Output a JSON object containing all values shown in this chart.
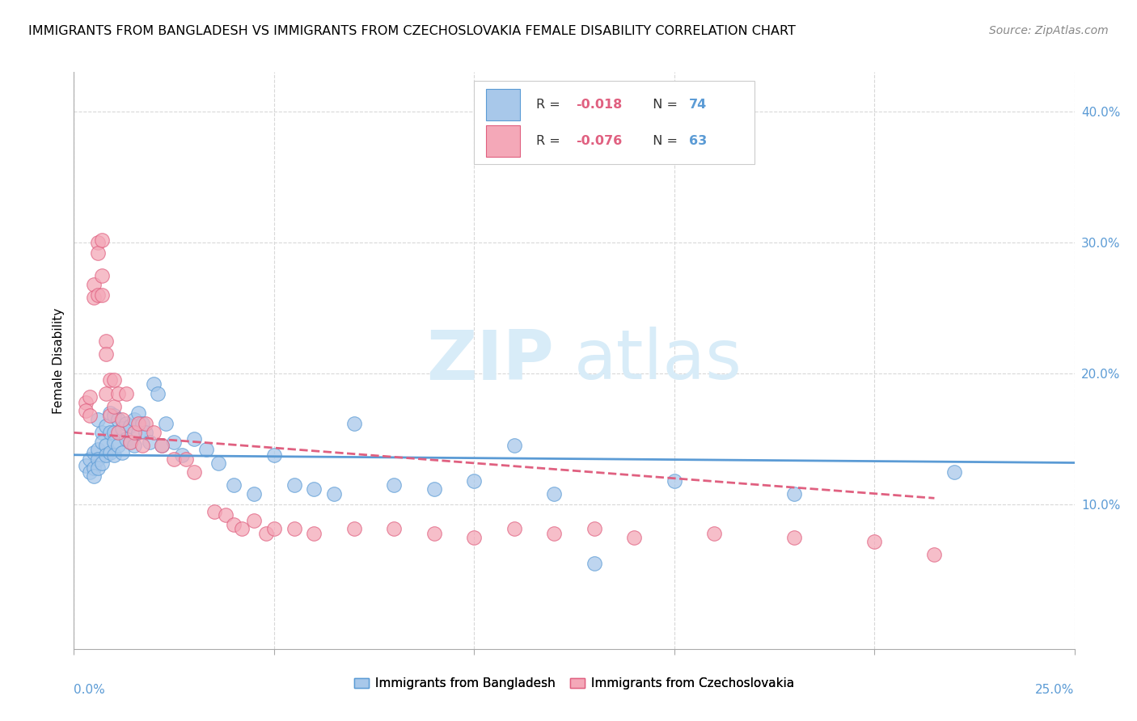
{
  "title": "IMMIGRANTS FROM BANGLADESH VS IMMIGRANTS FROM CZECHOSLOVAKIA FEMALE DISABILITY CORRELATION CHART",
  "source": "Source: ZipAtlas.com",
  "ylabel": "Female Disability",
  "ylabel_right_ticks": [
    "10.0%",
    "20.0%",
    "30.0%",
    "40.0%"
  ],
  "ylabel_right_vals": [
    0.1,
    0.2,
    0.3,
    0.4
  ],
  "xlim": [
    0.0,
    0.25
  ],
  "ylim": [
    -0.01,
    0.43
  ],
  "color_blue": "#a8c8ea",
  "color_pink": "#f4a8b8",
  "color_line_blue": "#5b9bd5",
  "color_line_pink": "#e06080",
  "watermark_zip": "ZIP",
  "watermark_atlas": "atlas",
  "watermark_color": "#d8ecf8",
  "blue_points_x": [
    0.003,
    0.004,
    0.004,
    0.005,
    0.005,
    0.005,
    0.006,
    0.006,
    0.006,
    0.006,
    0.007,
    0.007,
    0.007,
    0.008,
    0.008,
    0.008,
    0.009,
    0.009,
    0.009,
    0.01,
    0.01,
    0.01,
    0.01,
    0.011,
    0.011,
    0.012,
    0.012,
    0.013,
    0.013,
    0.014,
    0.014,
    0.015,
    0.015,
    0.016,
    0.016,
    0.017,
    0.018,
    0.019,
    0.02,
    0.021,
    0.022,
    0.023,
    0.025,
    0.027,
    0.03,
    0.033,
    0.036,
    0.04,
    0.045,
    0.05,
    0.055,
    0.06,
    0.065,
    0.07,
    0.08,
    0.09,
    0.1,
    0.11,
    0.12,
    0.13,
    0.15,
    0.18,
    0.22
  ],
  "blue_points_y": [
    0.13,
    0.135,
    0.125,
    0.14,
    0.128,
    0.122,
    0.165,
    0.142,
    0.135,
    0.128,
    0.155,
    0.148,
    0.132,
    0.16,
    0.145,
    0.138,
    0.17,
    0.155,
    0.14,
    0.168,
    0.155,
    0.148,
    0.138,
    0.165,
    0.145,
    0.158,
    0.14,
    0.162,
    0.15,
    0.16,
    0.148,
    0.165,
    0.145,
    0.17,
    0.155,
    0.162,
    0.155,
    0.148,
    0.192,
    0.185,
    0.145,
    0.162,
    0.148,
    0.138,
    0.15,
    0.142,
    0.132,
    0.115,
    0.108,
    0.138,
    0.115,
    0.112,
    0.108,
    0.162,
    0.115,
    0.112,
    0.118,
    0.145,
    0.108,
    0.055,
    0.118,
    0.108,
    0.125
  ],
  "pink_points_x": [
    0.003,
    0.003,
    0.004,
    0.004,
    0.005,
    0.005,
    0.006,
    0.006,
    0.006,
    0.007,
    0.007,
    0.007,
    0.008,
    0.008,
    0.008,
    0.009,
    0.009,
    0.01,
    0.01,
    0.011,
    0.011,
    0.012,
    0.013,
    0.014,
    0.015,
    0.016,
    0.017,
    0.018,
    0.02,
    0.022,
    0.025,
    0.028,
    0.03,
    0.035,
    0.038,
    0.04,
    0.042,
    0.045,
    0.048,
    0.05,
    0.055,
    0.06,
    0.07,
    0.08,
    0.09,
    0.1,
    0.11,
    0.12,
    0.13,
    0.14,
    0.16,
    0.18,
    0.2,
    0.215
  ],
  "pink_points_y": [
    0.178,
    0.172,
    0.182,
    0.168,
    0.268,
    0.258,
    0.3,
    0.292,
    0.26,
    0.302,
    0.275,
    0.26,
    0.225,
    0.215,
    0.185,
    0.195,
    0.168,
    0.195,
    0.175,
    0.185,
    0.155,
    0.165,
    0.185,
    0.148,
    0.155,
    0.162,
    0.145,
    0.162,
    0.155,
    0.145,
    0.135,
    0.135,
    0.125,
    0.095,
    0.092,
    0.085,
    0.082,
    0.088,
    0.078,
    0.082,
    0.082,
    0.078,
    0.082,
    0.082,
    0.078,
    0.075,
    0.082,
    0.078,
    0.082,
    0.075,
    0.078,
    0.075,
    0.072,
    0.062
  ],
  "blue_line_x": [
    0.0,
    0.25
  ],
  "blue_line_y": [
    0.138,
    0.132
  ],
  "pink_line_x": [
    0.0,
    0.215
  ],
  "pink_line_y": [
    0.155,
    0.105
  ],
  "grid_color": "#d8d8d8",
  "background_color": "#ffffff",
  "legend_r1_color": "-0.018",
  "legend_n1_color": "74",
  "legend_r2_color": "-0.076",
  "legend_n2_color": "63"
}
